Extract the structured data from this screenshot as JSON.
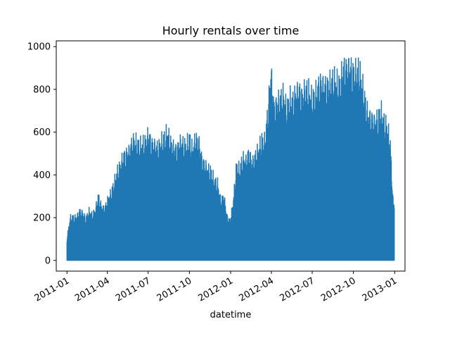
{
  "chart_data": {
    "type": "line",
    "title": "Hourly rentals over time",
    "xlabel": "datetime",
    "ylabel": "",
    "xlim": [
      "2010-12-08",
      "2013-01-24"
    ],
    "ylim": [
      -50,
      1027
    ],
    "x_ticks": [
      "2011-01",
      "2011-04",
      "2011-07",
      "2011-10",
      "2012-01",
      "2012-04",
      "2012-07",
      "2012-10",
      "2013-01"
    ],
    "y_ticks": [
      0,
      200,
      400,
      600,
      800,
      1000
    ],
    "grid": false,
    "series": [
      {
        "color": "#1f77b4",
        "min_value": 1,
        "x": [
          "2011-01-01",
          "2011-01-08",
          "2011-01-15",
          "2011-01-22",
          "2011-01-29",
          "2011-02-05",
          "2011-02-12",
          "2011-02-19",
          "2011-02-26",
          "2011-03-05",
          "2011-03-12",
          "2011-03-19",
          "2011-03-26",
          "2011-04-02",
          "2011-04-09",
          "2011-04-16",
          "2011-04-23",
          "2011-04-30",
          "2011-05-07",
          "2011-05-14",
          "2011-05-21",
          "2011-05-28",
          "2011-06-04",
          "2011-06-11",
          "2011-06-18",
          "2011-06-25",
          "2011-07-02",
          "2011-07-09",
          "2011-07-16",
          "2011-07-23",
          "2011-07-30",
          "2011-08-06",
          "2011-08-13",
          "2011-08-20",
          "2011-08-27",
          "2011-09-03",
          "2011-09-10",
          "2011-09-17",
          "2011-09-24",
          "2011-10-01",
          "2011-10-08",
          "2011-10-15",
          "2011-10-22",
          "2011-10-29",
          "2011-11-05",
          "2011-11-12",
          "2011-11-19",
          "2011-11-26",
          "2011-12-03",
          "2011-12-10",
          "2011-12-17",
          "2011-12-24",
          "2011-12-31",
          "2012-01-07",
          "2012-01-14",
          "2012-01-21",
          "2012-01-28",
          "2012-02-04",
          "2012-02-11",
          "2012-02-18",
          "2012-02-25",
          "2012-03-03",
          "2012-03-10",
          "2012-03-17",
          "2012-03-24",
          "2012-03-31",
          "2012-04-07",
          "2012-04-14",
          "2012-04-21",
          "2012-04-28",
          "2012-05-05",
          "2012-05-12",
          "2012-05-19",
          "2012-05-26",
          "2012-06-02",
          "2012-06-09",
          "2012-06-16",
          "2012-06-23",
          "2012-06-30",
          "2012-07-07",
          "2012-07-14",
          "2012-07-21",
          "2012-07-28",
          "2012-08-04",
          "2012-08-11",
          "2012-08-18",
          "2012-08-25",
          "2012-09-01",
          "2012-09-08",
          "2012-09-15",
          "2012-09-22",
          "2012-09-29",
          "2012-10-06",
          "2012-10-13",
          "2012-10-20",
          "2012-10-27",
          "2012-11-03",
          "2012-11-10",
          "2012-11-17",
          "2012-11-24",
          "2012-12-01",
          "2012-12-08",
          "2012-12-15",
          "2012-12-22",
          "2012-12-29",
          "2012-12-31"
        ],
        "max_values": [
          110,
          215,
          220,
          215,
          250,
          240,
          210,
          250,
          230,
          250,
          330,
          270,
          260,
          310,
          340,
          390,
          450,
          480,
          530,
          540,
          560,
          610,
          600,
          580,
          590,
          600,
          640,
          590,
          580,
          570,
          600,
          620,
          650,
          600,
          570,
          560,
          600,
          590,
          580,
          620,
          560,
          620,
          600,
          510,
          480,
          460,
          450,
          400,
          390,
          300,
          330,
          220,
          200,
          300,
          480,
          460,
          520,
          500,
          550,
          490,
          530,
          560,
          610,
          600,
          750,
          960,
          770,
          800,
          820,
          840,
          760,
          820,
          810,
          850,
          860,
          830,
          870,
          860,
          820,
          830,
          880,
          900,
          880,
          890,
          900,
          920,
          900,
          890,
          980,
          970,
          980,
          960,
          950,
          970,
          900,
          810,
          730,
          720,
          700,
          720,
          760,
          700,
          680,
          600,
          270,
          310
        ]
      }
    ]
  }
}
